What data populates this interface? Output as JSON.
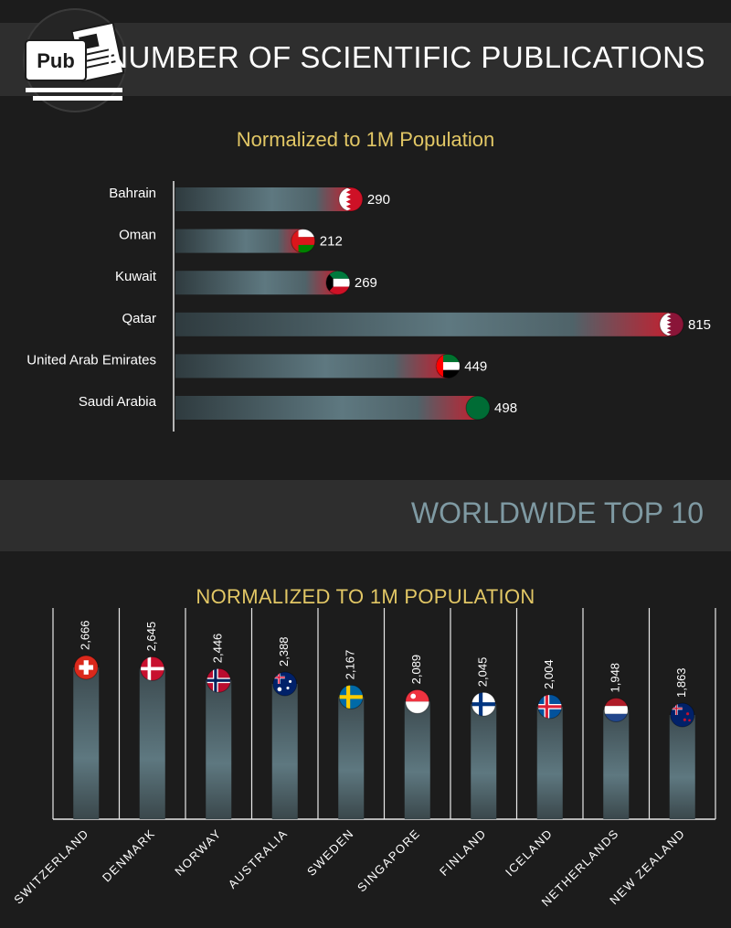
{
  "header": {
    "logo_text": "Pub",
    "title": "NUMBER OF SCIENTIFIC PUBLICATIONS"
  },
  "section1": {
    "subtitle": "Normalized to 1M Population"
  },
  "section2": {
    "title": "WORLDWIDE TOP 10",
    "subtitle": "NORMALIZED TO 1M POPULATION"
  },
  "colors": {
    "accent_gold": "#e2c765",
    "section_title_blue": "#7f9aa3",
    "bar_gray": "#5e7880",
    "bar_end_red": "#c22030",
    "band": "#2e2e2e"
  },
  "chart_data": [
    {
      "type": "bar",
      "orientation": "horizontal",
      "title": "Normalized to 1M Population",
      "categories": [
        "Bahrain",
        "Oman",
        "Kuwait",
        "Qatar",
        "United Arab Emirates",
        "Saudi Arabia"
      ],
      "values": [
        290,
        212,
        269,
        815,
        449,
        498
      ],
      "value_labels": [
        "290",
        "212",
        "269",
        "815",
        "449",
        "498"
      ],
      "flags": [
        "bahrain-flag-icon",
        "oman-flag-icon",
        "kuwait-flag-icon",
        "qatar-flag-icon",
        "uae-flag-icon",
        "saudi-arabia-flag-icon"
      ],
      "xlim": [
        0,
        815
      ],
      "grid": false
    },
    {
      "type": "bar",
      "orientation": "vertical",
      "title": "NORMALIZED TO 1M POPULATION",
      "categories": [
        "SWITZERLAND",
        "DENMARK",
        "NORWAY",
        "AUSTRALIA",
        "SWEDEN",
        "SINGAPORE",
        "FINLAND",
        "ICELAND",
        "NETHERLANDS",
        "NEW ZEALAND"
      ],
      "values": [
        2666,
        2645,
        2446,
        2388,
        2167,
        2089,
        2045,
        2004,
        1948,
        1863
      ],
      "value_labels": [
        "2,666",
        "2,645",
        "2,446",
        "2,388",
        "2,167",
        "2,089",
        "2,045",
        "2,004",
        "1,948",
        "1,863"
      ],
      "flags": [
        "switzerland-flag-icon",
        "denmark-flag-icon",
        "norway-flag-icon",
        "australia-flag-icon",
        "sweden-flag-icon",
        "singapore-flag-icon",
        "finland-flag-icon",
        "iceland-flag-icon",
        "netherlands-flag-icon",
        "new-zealand-flag-icon"
      ],
      "grid": false
    }
  ]
}
